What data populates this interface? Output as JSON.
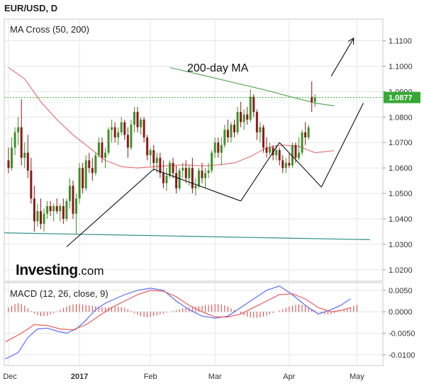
{
  "title": "EUR/USD, D",
  "colors": {
    "up": "#3f8f2a",
    "down": "#8b1a1a",
    "ma50": "#e8747a",
    "ma200": "#5aa85a",
    "support": "#2f8f86",
    "price_line": "#36b036",
    "price_tag_bg": "#37a836",
    "macd_line": "#5b6cff",
    "signal_line": "#e85c5c",
    "macd_hist": "#d23c3c",
    "grid": "#e6e6e6",
    "annotation": "#111111"
  },
  "logo": {
    "brand": "Investing",
    "tld": ".com"
  },
  "chart_data": [
    {
      "type": "candlestick",
      "title": "MA Cross (50, 200)",
      "ylim": [
        1.0155,
        1.1185
      ],
      "yticks": [
        "1.1100",
        "1.1000",
        "1.0900",
        "1.0800",
        "1.0700",
        "1.0600",
        "1.0500",
        "1.0400",
        "1.0300",
        "1.0200"
      ],
      "x_labels": [
        {
          "label": "Dec",
          "day": 0
        },
        {
          "label": "2017",
          "day": 22
        },
        {
          "label": "Feb",
          "day": 44
        },
        {
          "label": "Mar",
          "day": 64
        },
        {
          "label": "Apr",
          "day": 87
        },
        {
          "label": "May",
          "day": 108
        }
      ],
      "last_price": "1.0877",
      "annotation": "200-day MA",
      "ohlc": [
        [
          1.063,
          1.068,
          1.058,
          1.06
        ],
        [
          1.06,
          1.072,
          1.059,
          1.068
        ],
        [
          1.068,
          1.076,
          1.065,
          1.074
        ],
        [
          1.074,
          1.08,
          1.069,
          1.076
        ],
        [
          1.076,
          1.087,
          1.061,
          1.064
        ],
        [
          1.064,
          1.07,
          1.06,
          1.066
        ],
        [
          1.066,
          1.073,
          1.056,
          1.059
        ],
        [
          1.059,
          1.064,
          1.046,
          1.048
        ],
        [
          1.048,
          1.053,
          1.035,
          1.039
        ],
        [
          1.039,
          1.046,
          1.037,
          1.043
        ],
        [
          1.043,
          1.048,
          1.036,
          1.038
        ],
        [
          1.038,
          1.044,
          1.035,
          1.042
        ],
        [
          1.042,
          1.047,
          1.04,
          1.045
        ],
        [
          1.045,
          1.047,
          1.041,
          1.043
        ],
        [
          1.043,
          1.046,
          1.039,
          1.045
        ],
        [
          1.045,
          1.048,
          1.042,
          1.043
        ],
        [
          1.043,
          1.046,
          1.039,
          1.045
        ],
        [
          1.045,
          1.048,
          1.038,
          1.04
        ],
        [
          1.04,
          1.048,
          1.039,
          1.047
        ],
        [
          1.047,
          1.056,
          1.044,
          1.053
        ],
        [
          1.053,
          1.055,
          1.04,
          1.042
        ],
        [
          1.042,
          1.05,
          1.034,
          1.048
        ],
        [
          1.048,
          1.062,
          1.046,
          1.06
        ],
        [
          1.06,
          1.062,
          1.05,
          1.052
        ],
        [
          1.052,
          1.065,
          1.051,
          1.063
        ],
        [
          1.063,
          1.066,
          1.058,
          1.06
        ],
        [
          1.06,
          1.064,
          1.055,
          1.058
        ],
        [
          1.058,
          1.066,
          1.057,
          1.065
        ],
        [
          1.065,
          1.072,
          1.064,
          1.07
        ],
        [
          1.07,
          1.072,
          1.062,
          1.064
        ],
        [
          1.064,
          1.068,
          1.06,
          1.066
        ],
        [
          1.066,
          1.076,
          1.065,
          1.075
        ],
        [
          1.075,
          1.079,
          1.07,
          1.076
        ],
        [
          1.076,
          1.078,
          1.07,
          1.072
        ],
        [
          1.072,
          1.076,
          1.069,
          1.074
        ],
        [
          1.074,
          1.08,
          1.073,
          1.078
        ],
        [
          1.078,
          1.079,
          1.071,
          1.073
        ],
        [
          1.073,
          1.076,
          1.064,
          1.068
        ],
        [
          1.068,
          1.079,
          1.067,
          1.077
        ],
        [
          1.077,
          1.084,
          1.074,
          1.082
        ],
        [
          1.082,
          1.084,
          1.074,
          1.076
        ],
        [
          1.076,
          1.08,
          1.073,
          1.079
        ],
        [
          1.079,
          1.08,
          1.07,
          1.072
        ],
        [
          1.072,
          1.073,
          1.063,
          1.065
        ],
        [
          1.065,
          1.068,
          1.061,
          1.067
        ],
        [
          1.067,
          1.069,
          1.059,
          1.062
        ],
        [
          1.062,
          1.066,
          1.058,
          1.064
        ],
        [
          1.064,
          1.066,
          1.056,
          1.058
        ],
        [
          1.058,
          1.063,
          1.052,
          1.054
        ],
        [
          1.054,
          1.06,
          1.051,
          1.057
        ],
        [
          1.057,
          1.063,
          1.056,
          1.062
        ],
        [
          1.062,
          1.064,
          1.056,
          1.058
        ],
        [
          1.058,
          1.061,
          1.05,
          1.052
        ],
        [
          1.052,
          1.06,
          1.051,
          1.059
        ],
        [
          1.059,
          1.062,
          1.056,
          1.06
        ],
        [
          1.06,
          1.063,
          1.054,
          1.056
        ],
        [
          1.056,
          1.061,
          1.053,
          1.06
        ],
        [
          1.06,
          1.064,
          1.05,
          1.052
        ],
        [
          1.052,
          1.056,
          1.049,
          1.053
        ],
        [
          1.053,
          1.06,
          1.052,
          1.059
        ],
        [
          1.059,
          1.062,
          1.054,
          1.056
        ],
        [
          1.056,
          1.06,
          1.052,
          1.058
        ],
        [
          1.058,
          1.062,
          1.056,
          1.059
        ],
        [
          1.059,
          1.067,
          1.058,
          1.066
        ],
        [
          1.066,
          1.072,
          1.064,
          1.07
        ],
        [
          1.07,
          1.072,
          1.064,
          1.066
        ],
        [
          1.066,
          1.072,
          1.061,
          1.069
        ],
        [
          1.069,
          1.077,
          1.068,
          1.075
        ],
        [
          1.075,
          1.079,
          1.07,
          1.072
        ],
        [
          1.072,
          1.078,
          1.07,
          1.077
        ],
        [
          1.077,
          1.079,
          1.072,
          1.074
        ],
        [
          1.074,
          1.084,
          1.073,
          1.082
        ],
        [
          1.082,
          1.086,
          1.076,
          1.078
        ],
        [
          1.078,
          1.083,
          1.075,
          1.081
        ],
        [
          1.081,
          1.084,
          1.077,
          1.079
        ],
        [
          1.079,
          1.091,
          1.078,
          1.088
        ],
        [
          1.088,
          1.089,
          1.08,
          1.082
        ],
        [
          1.082,
          1.083,
          1.071,
          1.074
        ],
        [
          1.074,
          1.078,
          1.07,
          1.076
        ],
        [
          1.076,
          1.077,
          1.066,
          1.068
        ],
        [
          1.068,
          1.072,
          1.064,
          1.066
        ],
        [
          1.066,
          1.07,
          1.065,
          1.068
        ],
        [
          1.068,
          1.069,
          1.063,
          1.065
        ],
        [
          1.065,
          1.069,
          1.063,
          1.067
        ],
        [
          1.067,
          1.068,
          1.061,
          1.063
        ],
        [
          1.063,
          1.065,
          1.058,
          1.06
        ],
        [
          1.06,
          1.064,
          1.058,
          1.062
        ],
        [
          1.062,
          1.066,
          1.06,
          1.061
        ],
        [
          1.061,
          1.07,
          1.06,
          1.069
        ],
        [
          1.069,
          1.07,
          1.062,
          1.064
        ],
        [
          1.064,
          1.072,
          1.063,
          1.066
        ],
        [
          1.066,
          1.075,
          1.065,
          1.074
        ],
        [
          1.074,
          1.078,
          1.069,
          1.072
        ],
        [
          1.072,
          1.077,
          1.071,
          1.076
        ],
        [
          1.088,
          1.094,
          1.082,
          1.086
        ],
        [
          1.086,
          1.089,
          1.084,
          1.0877
        ]
      ],
      "ma200": [
        [
          50,
          1.0995
        ],
        [
          60,
          1.0965
        ],
        [
          70,
          1.0935
        ],
        [
          80,
          1.0905
        ],
        [
          88,
          1.0878
        ],
        [
          95,
          1.0855
        ],
        [
          101,
          1.0844
        ]
      ],
      "ma50": [
        [
          0,
          1.0995
        ],
        [
          5,
          1.095
        ],
        [
          10,
          1.086
        ],
        [
          15,
          1.079
        ],
        [
          20,
          1.073
        ],
        [
          25,
          1.068
        ],
        [
          30,
          1.063
        ],
        [
          35,
          1.0605
        ],
        [
          40,
          1.06
        ],
        [
          45,
          1.0605
        ],
        [
          50,
          1.061
        ],
        [
          55,
          1.0612
        ],
        [
          60,
          1.0608
        ],
        [
          65,
          1.0612
        ],
        [
          70,
          1.062
        ],
        [
          75,
          1.0645
        ],
        [
          80,
          1.068
        ],
        [
          85,
          1.069
        ],
        [
          90,
          1.0685
        ],
        [
          95,
          1.066
        ],
        [
          101,
          1.0668
        ]
      ],
      "support_line": [
        [
          -2,
          1.0345
        ],
        [
          112,
          1.0318
        ]
      ],
      "trendlines": [
        [
          [
            18,
            1.029
          ],
          [
            45,
            1.0595
          ]
        ],
        [
          [
            45,
            1.0595
          ],
          [
            72,
            1.047
          ]
        ],
        [
          [
            72,
            1.047
          ],
          [
            84,
            1.07
          ]
        ],
        [
          [
            84,
            1.07
          ],
          [
            97,
            1.0525
          ]
        ],
        [
          [
            97,
            1.0525
          ],
          [
            110,
            1.0855
          ]
        ]
      ],
      "arrow": [
        [
          100,
          1.096
        ],
        [
          107,
          1.111
        ]
      ]
    },
    {
      "type": "line",
      "title": "MACD (12, 26, close, 9)",
      "ylim": [
        -0.0125,
        0.0068
      ],
      "yticks": [
        "0.0050",
        "0.0000",
        "-0.0050",
        "-0.0100"
      ],
      "series": [
        {
          "role": "macd",
          "points": [
            [
              -1,
              -0.011
            ],
            [
              3,
              -0.0095
            ],
            [
              6,
              -0.006
            ],
            [
              9,
              -0.004
            ],
            [
              12,
              -0.0038
            ],
            [
              15,
              -0.0045
            ],
            [
              18,
              -0.005
            ],
            [
              21,
              -0.004
            ],
            [
              24,
              -0.002
            ],
            [
              27,
              0.0005
            ],
            [
              30,
              0.002
            ],
            [
              33,
              0.003
            ],
            [
              36,
              0.004
            ],
            [
              40,
              0.005
            ],
            [
              44,
              0.0055
            ],
            [
              48,
              0.005
            ],
            [
              52,
              0.0025
            ],
            [
              56,
              0.0005
            ],
            [
              60,
              -0.001
            ],
            [
              64,
              -0.0015
            ],
            [
              68,
              -0.001
            ],
            [
              72,
              0.001
            ],
            [
              76,
              0.003
            ],
            [
              80,
              0.005
            ],
            [
              84,
              0.006
            ],
            [
              88,
              0.004
            ],
            [
              92,
              0.0015
            ],
            [
              96,
              -0.0005
            ],
            [
              100,
              0.0005
            ],
            [
              103,
              0.0015
            ],
            [
              106,
              0.003
            ]
          ]
        },
        {
          "role": "signal",
          "points": [
            [
              -1,
              -0.007
            ],
            [
              4,
              -0.005
            ],
            [
              8,
              -0.003
            ],
            [
              12,
              -0.0032
            ],
            [
              16,
              -0.004
            ],
            [
              20,
              -0.0042
            ],
            [
              24,
              -0.003
            ],
            [
              28,
              -0.001
            ],
            [
              32,
              0.001
            ],
            [
              36,
              0.0025
            ],
            [
              40,
              0.004
            ],
            [
              44,
              0.005
            ],
            [
              48,
              0.0048
            ],
            [
              52,
              0.0035
            ],
            [
              56,
              0.0015
            ],
            [
              60,
              0.0
            ],
            [
              64,
              -0.0012
            ],
            [
              68,
              -0.0012
            ],
            [
              72,
              -0.0005
            ],
            [
              76,
              0.001
            ],
            [
              80,
              0.0025
            ],
            [
              84,
              0.004
            ],
            [
              88,
              0.0042
            ],
            [
              92,
              0.003
            ],
            [
              96,
              0.001
            ],
            [
              100,
              0.0
            ],
            [
              103,
              0.0003
            ],
            [
              106,
              0.001
            ]
          ]
        }
      ],
      "histogram": [
        0.001,
        0.0014,
        0.0018,
        0.002,
        0.0018,
        0.0014,
        0.0008,
        0.0002,
        -0.0004,
        -0.0008,
        -0.001,
        -0.001,
        -0.0009,
        -0.0006,
        -0.0003,
        0.0001,
        0.0005,
        0.0009,
        0.0012,
        0.0015,
        0.0017,
        0.0018,
        0.0018,
        0.0017,
        0.0016,
        0.0015,
        0.0014,
        0.0013,
        0.0012,
        0.0011,
        0.001,
        0.001,
        0.0011,
        0.0012,
        0.0012,
        0.0011,
        0.0009,
        0.0006,
        0.0002,
        -0.0003,
        -0.0007,
        -0.001,
        -0.0012,
        -0.0013,
        -0.0012,
        -0.001,
        -0.0008,
        -0.0006,
        -0.0004,
        -0.0002,
        0.0,
        0.0002,
        0.0004,
        0.0006,
        0.0008,
        0.0009,
        0.001,
        0.0011,
        0.0012,
        0.0013,
        0.0014,
        0.0015,
        0.0016,
        0.0017,
        0.0018,
        0.0018,
        0.0017,
        0.0015,
        0.0012,
        0.0008,
        0.0004,
        0.0,
        -0.0004,
        -0.0008,
        -0.0011,
        -0.0013,
        -0.0014,
        -0.0014,
        -0.0013,
        -0.0011,
        -0.0009,
        -0.0006,
        -0.0003,
        0.0,
        0.0003,
        0.0006,
        0.0009,
        0.0012,
        0.0014,
        0.0016,
        0.0017,
        0.0016,
        0.0014,
        0.0011,
        0.0007,
        0.0003,
        -0.0001,
        -0.0004,
        -0.0006,
        -0.0006,
        -0.0005,
        -0.0003,
        -0.0001,
        0.0001,
        0.0004,
        0.0007,
        0.001,
        0.0014,
        0.0016
      ]
    }
  ]
}
